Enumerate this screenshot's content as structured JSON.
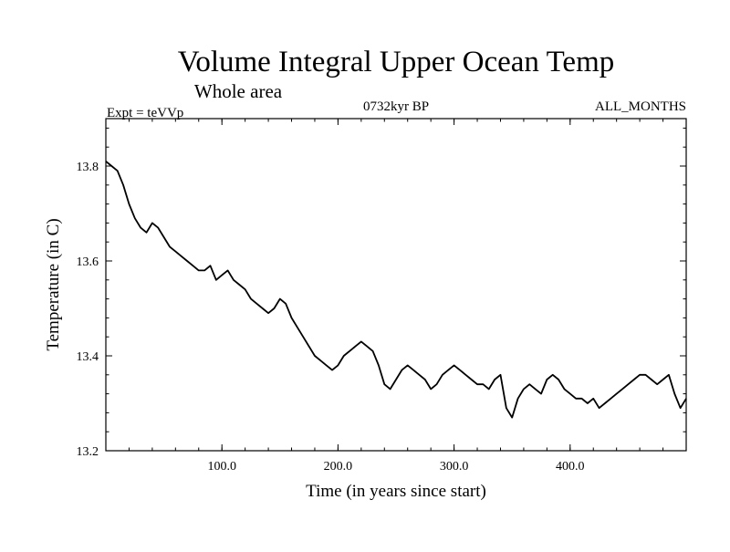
{
  "chart_data": {
    "type": "line",
    "title": "Volume Integral Upper Ocean Temp",
    "subtitle": "Whole area",
    "left_caption": "Expt = teVVp",
    "center_caption": "0732kyr BP",
    "right_caption": "ALL_MONTHS",
    "xlabel": "Time (in years since start)",
    "ylabel": "Temperature (in C)",
    "xlim": [
      0,
      500
    ],
    "ylim": [
      13.2,
      13.9
    ],
    "xticks": [
      {
        "value": 100,
        "label": "100.0"
      },
      {
        "value": 200,
        "label": "200.0"
      },
      {
        "value": 300,
        "label": "300.0"
      },
      {
        "value": 400,
        "label": "400.0"
      }
    ],
    "yticks": [
      {
        "value": 13.2,
        "label": "13.2"
      },
      {
        "value": 13.4,
        "label": "13.4"
      },
      {
        "value": 13.6,
        "label": "13.6"
      },
      {
        "value": 13.8,
        "label": "13.8"
      }
    ],
    "grid": false,
    "series": [
      {
        "x": [
          0,
          5,
          10,
          15,
          20,
          25,
          30,
          35,
          40,
          45,
          50,
          55,
          60,
          65,
          70,
          75,
          80,
          85,
          90,
          95,
          100,
          105,
          110,
          115,
          120,
          125,
          130,
          135,
          140,
          145,
          150,
          155,
          160,
          165,
          170,
          175,
          180,
          185,
          190,
          195,
          200,
          205,
          210,
          215,
          220,
          225,
          230,
          235,
          240,
          245,
          250,
          255,
          260,
          265,
          270,
          275,
          280,
          285,
          290,
          295,
          300,
          305,
          310,
          315,
          320,
          325,
          330,
          335,
          340,
          345,
          350,
          355,
          360,
          365,
          370,
          375,
          380,
          385,
          390,
          395,
          400,
          405,
          410,
          415,
          420,
          425,
          430,
          435,
          440,
          445,
          450,
          455,
          460,
          465,
          470,
          475,
          480,
          485,
          490,
          495,
          500
        ],
        "y": [
          13.81,
          13.8,
          13.79,
          13.76,
          13.72,
          13.69,
          13.67,
          13.66,
          13.68,
          13.67,
          13.65,
          13.63,
          13.62,
          13.61,
          13.6,
          13.59,
          13.58,
          13.58,
          13.59,
          13.56,
          13.57,
          13.58,
          13.56,
          13.55,
          13.54,
          13.52,
          13.51,
          13.5,
          13.49,
          13.5,
          13.52,
          13.51,
          13.48,
          13.46,
          13.44,
          13.42,
          13.4,
          13.39,
          13.38,
          13.37,
          13.38,
          13.4,
          13.41,
          13.42,
          13.43,
          13.42,
          13.41,
          13.38,
          13.34,
          13.33,
          13.35,
          13.37,
          13.38,
          13.37,
          13.36,
          13.35,
          13.33,
          13.34,
          13.36,
          13.37,
          13.38,
          13.37,
          13.36,
          13.35,
          13.34,
          13.34,
          13.33,
          13.35,
          13.36,
          13.29,
          13.27,
          13.31,
          13.33,
          13.34,
          13.33,
          13.32,
          13.35,
          13.36,
          13.35,
          13.33,
          13.32,
          13.31,
          13.31,
          13.3,
          13.31,
          13.29,
          13.3,
          13.31,
          13.32,
          13.33,
          13.34,
          13.35,
          13.36,
          13.36,
          13.35,
          13.34,
          13.35,
          13.36,
          13.32,
          13.29,
          13.31
        ]
      }
    ]
  }
}
